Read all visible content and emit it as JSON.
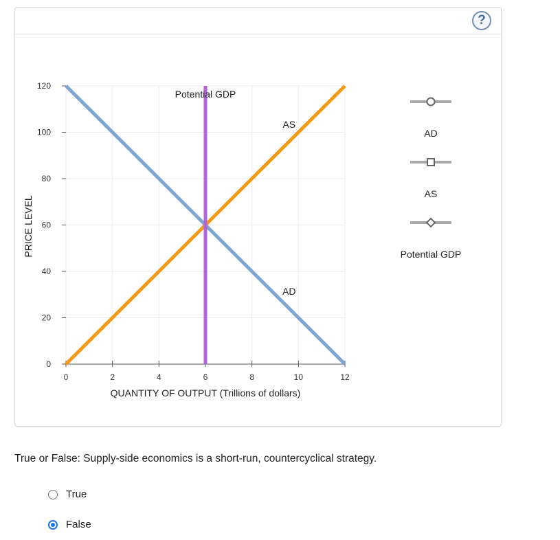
{
  "help": {
    "label": "?"
  },
  "chart_data": {
    "type": "line",
    "xlabel": "QUANTITY OF OUTPUT (Trillions of dollars)",
    "ylabel": "PRICE LEVEL",
    "xlim": [
      0,
      12
    ],
    "ylim": [
      0,
      120
    ],
    "x_ticks": [
      0,
      2,
      4,
      6,
      8,
      10,
      12
    ],
    "y_ticks": [
      0,
      20,
      40,
      60,
      80,
      100,
      120
    ],
    "grid": true,
    "series": [
      {
        "name": "AD",
        "color": "#7ea6d2",
        "points": [
          [
            0,
            120
          ],
          [
            12,
            0
          ]
        ],
        "label_at": [
          9.6,
          30
        ]
      },
      {
        "name": "AS",
        "color": "#f39a17",
        "points": [
          [
            0,
            0
          ],
          [
            12,
            120
          ]
        ],
        "label_at": [
          9.6,
          102
        ]
      },
      {
        "name": "Potential GDP",
        "color": "#b066d6",
        "points": [
          [
            6,
            0
          ],
          [
            6,
            120
          ]
        ],
        "label_at": [
          6,
          115
        ]
      }
    ],
    "legend": [
      {
        "label": "AD",
        "marker": "circle"
      },
      {
        "label": "AS",
        "marker": "square"
      },
      {
        "label": "Potential GDP",
        "marker": "diamond"
      }
    ],
    "legend_position": "right"
  },
  "question": {
    "text": "True or False: Supply-side economics is a short-run, countercyclical strategy.",
    "options": [
      {
        "label": "True",
        "selected": false
      },
      {
        "label": "False",
        "selected": true
      }
    ]
  }
}
